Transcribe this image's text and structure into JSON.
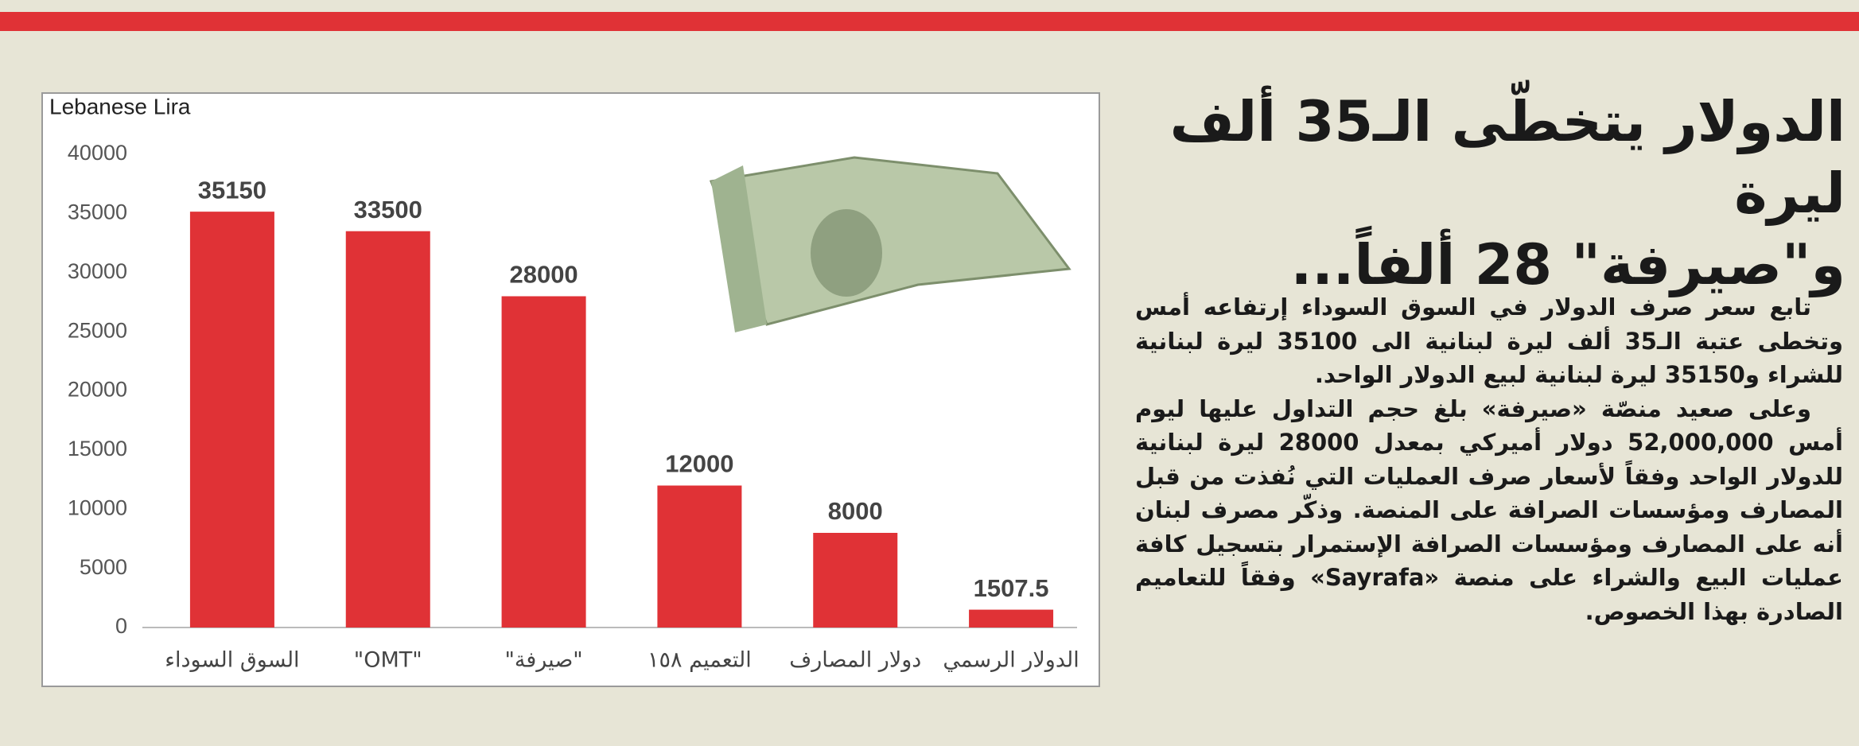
{
  "headline": [
    "الدولار يتخطّى الـ35 ألف ليرة",
    "و\"صيرفة\" 28 ألفاً..."
  ],
  "body": [
    [
      "تابع سعر صرف الدولار في السوق السوداء إرتفاعه أمس",
      "وتخطى عتبة الـ35 ألف ليرة لبنانية الى 35100 ليرة لبنانية",
      "للشراء و35150 ليرة لبنانية لبيع الدولار الواحد."
    ],
    [
      "وعلى صعيد منصّة «صيرفة» بلغ حجم التداول عليها ليوم",
      "أمس 52,000,000 دولار أميركي بمعدل 28000 ليرة لبنانية",
      "للدولار الواحد وفقاً لأسعار صرف العمليات التي نُفذت من قبل",
      "المصارف ومؤسسات الصرافة على المنصة. وذكّر مصرف لبنان",
      "أنه على المصارف ومؤسسات الصرافة الإستمرار بتسجيل كافة",
      "عمليات البيع والشراء على منصة «Sayrafa» وفقاً للتعاميم",
      "الصادرة بهذا الخصوص."
    ]
  ],
  "chart_data": {
    "type": "bar",
    "y_label": "Lebanese Lira",
    "categories": [
      "السوق السوداء",
      "\"OMT\"",
      "\"صيرفة\"",
      "التعميم ١٥٨",
      "دولار المصارف",
      "الدولار الرسمي"
    ],
    "values": [
      35150,
      33500,
      28000,
      12000,
      8000,
      1507.5
    ],
    "color": "#e03236",
    "ylim": [
      0,
      40000
    ],
    "yticks": [
      0,
      5000,
      10000,
      15000,
      20000,
      25000,
      30000,
      35000,
      40000
    ],
    "grid": false
  }
}
